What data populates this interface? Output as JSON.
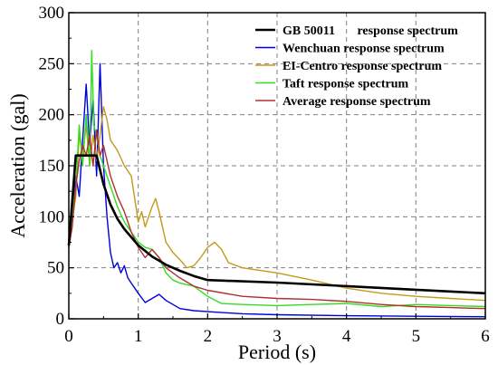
{
  "chart_data": {
    "type": "line",
    "xlabel": "Period (s)",
    "ylabel": "Acceleration (gal)",
    "xlim": [
      0,
      6
    ],
    "ylim": [
      0,
      300
    ],
    "x_ticks": [
      "0",
      "1",
      "2",
      "3",
      "4",
      "5",
      "6"
    ],
    "y_ticks": [
      "0",
      "50",
      "100",
      "150",
      "200",
      "250",
      "300"
    ],
    "grid": true,
    "legend_position": "top-right",
    "series": [
      {
        "name": "GB 50011       response spectrum",
        "color": "#000000",
        "points": [
          [
            0,
            72
          ],
          [
            0.1,
            160
          ],
          [
            0.4,
            160
          ],
          [
            0.5,
            132
          ],
          [
            0.6,
            112
          ],
          [
            0.7,
            98
          ],
          [
            0.8,
            88
          ],
          [
            1.0,
            72
          ],
          [
            1.2,
            61
          ],
          [
            1.4,
            53
          ],
          [
            1.6,
            47
          ],
          [
            1.8,
            42
          ],
          [
            2.0,
            38
          ],
          [
            3.0,
            35.5
          ],
          [
            4.0,
            32
          ],
          [
            5.0,
            28.5
          ],
          [
            6.0,
            25
          ]
        ]
      },
      {
        "name": "Wenchuan response spectrum",
        "color": "#0000dd",
        "points": [
          [
            0,
            75
          ],
          [
            0.05,
            100
          ],
          [
            0.1,
            140
          ],
          [
            0.15,
            120
          ],
          [
            0.2,
            175
          ],
          [
            0.25,
            230
          ],
          [
            0.3,
            170
          ],
          [
            0.35,
            215
          ],
          [
            0.4,
            140
          ],
          [
            0.45,
            250
          ],
          [
            0.5,
            150
          ],
          [
            0.55,
            100
          ],
          [
            0.6,
            65
          ],
          [
            0.65,
            50
          ],
          [
            0.7,
            55
          ],
          [
            0.75,
            45
          ],
          [
            0.8,
            52
          ],
          [
            0.85,
            40
          ],
          [
            0.9,
            35
          ],
          [
            1.0,
            25
          ],
          [
            1.1,
            16
          ],
          [
            1.2,
            20
          ],
          [
            1.3,
            24
          ],
          [
            1.4,
            18
          ],
          [
            1.5,
            14
          ],
          [
            1.6,
            10
          ],
          [
            1.8,
            8
          ],
          [
            2.0,
            7
          ],
          [
            2.5,
            5
          ],
          [
            3.0,
            4
          ],
          [
            4.0,
            3
          ],
          [
            5.0,
            2.5
          ],
          [
            6.0,
            2
          ]
        ]
      },
      {
        "name": "EI-Centro response spectrum",
        "color": "#c49a1a",
        "points": [
          [
            0,
            75
          ],
          [
            0.1,
            120
          ],
          [
            0.15,
            180
          ],
          [
            0.2,
            160
          ],
          [
            0.25,
            190
          ],
          [
            0.3,
            150
          ],
          [
            0.35,
            180
          ],
          [
            0.4,
            155
          ],
          [
            0.45,
            180
          ],
          [
            0.5,
            208
          ],
          [
            0.55,
            195
          ],
          [
            0.6,
            175
          ],
          [
            0.7,
            165
          ],
          [
            0.8,
            150
          ],
          [
            0.9,
            140
          ],
          [
            1.0,
            95
          ],
          [
            1.05,
            105
          ],
          [
            1.1,
            90
          ],
          [
            1.2,
            110
          ],
          [
            1.25,
            118
          ],
          [
            1.3,
            105
          ],
          [
            1.4,
            75
          ],
          [
            1.5,
            65
          ],
          [
            1.6,
            58
          ],
          [
            1.7,
            50
          ],
          [
            1.8,
            52
          ],
          [
            1.9,
            60
          ],
          [
            2.0,
            70
          ],
          [
            2.1,
            75
          ],
          [
            2.2,
            68
          ],
          [
            2.3,
            55
          ],
          [
            2.5,
            50
          ],
          [
            3.0,
            45
          ],
          [
            3.5,
            38
          ],
          [
            4.0,
            30
          ],
          [
            4.5,
            25
          ],
          [
            5.0,
            22
          ],
          [
            5.5,
            20
          ],
          [
            6.0,
            18
          ]
        ]
      },
      {
        "name": "Taft response spectrum",
        "color": "#33dd22",
        "points": [
          [
            0,
            75
          ],
          [
            0.1,
            130
          ],
          [
            0.15,
            190
          ],
          [
            0.2,
            150
          ],
          [
            0.25,
            200
          ],
          [
            0.3,
            150
          ],
          [
            0.33,
            263
          ],
          [
            0.36,
            190
          ],
          [
            0.4,
            180
          ],
          [
            0.45,
            160
          ],
          [
            0.5,
            150
          ],
          [
            0.6,
            130
          ],
          [
            0.7,
            110
          ],
          [
            0.8,
            95
          ],
          [
            0.9,
            85
          ],
          [
            1.0,
            75
          ],
          [
            1.1,
            70
          ],
          [
            1.2,
            68
          ],
          [
            1.3,
            60
          ],
          [
            1.4,
            45
          ],
          [
            1.5,
            38
          ],
          [
            1.6,
            35
          ],
          [
            1.8,
            32
          ],
          [
            2.0,
            22
          ],
          [
            2.2,
            15
          ],
          [
            2.5,
            14
          ],
          [
            3.0,
            13
          ],
          [
            3.5,
            14
          ],
          [
            4.0,
            15
          ],
          [
            4.5,
            12
          ],
          [
            5.0,
            14
          ],
          [
            5.5,
            13
          ],
          [
            6.0,
            12
          ]
        ]
      },
      {
        "name": "Average response spectrum",
        "color": "#b03030",
        "points": [
          [
            0,
            70
          ],
          [
            0.05,
            90
          ],
          [
            0.1,
            130
          ],
          [
            0.15,
            155
          ],
          [
            0.2,
            170
          ],
          [
            0.25,
            160
          ],
          [
            0.3,
            180
          ],
          [
            0.35,
            150
          ],
          [
            0.4,
            185
          ],
          [
            0.45,
            160
          ],
          [
            0.5,
            170
          ],
          [
            0.6,
            140
          ],
          [
            0.7,
            120
          ],
          [
            0.8,
            105
          ],
          [
            0.9,
            85
          ],
          [
            1.0,
            70
          ],
          [
            1.1,
            60
          ],
          [
            1.2,
            68
          ],
          [
            1.3,
            60
          ],
          [
            1.4,
            50
          ],
          [
            1.6,
            40
          ],
          [
            1.8,
            32
          ],
          [
            2.0,
            28
          ],
          [
            2.5,
            22
          ],
          [
            3.0,
            20
          ],
          [
            3.5,
            19
          ],
          [
            4.0,
            17
          ],
          [
            4.5,
            14
          ],
          [
            5.0,
            12
          ],
          [
            5.5,
            11
          ],
          [
            6.0,
            10
          ]
        ]
      }
    ]
  }
}
